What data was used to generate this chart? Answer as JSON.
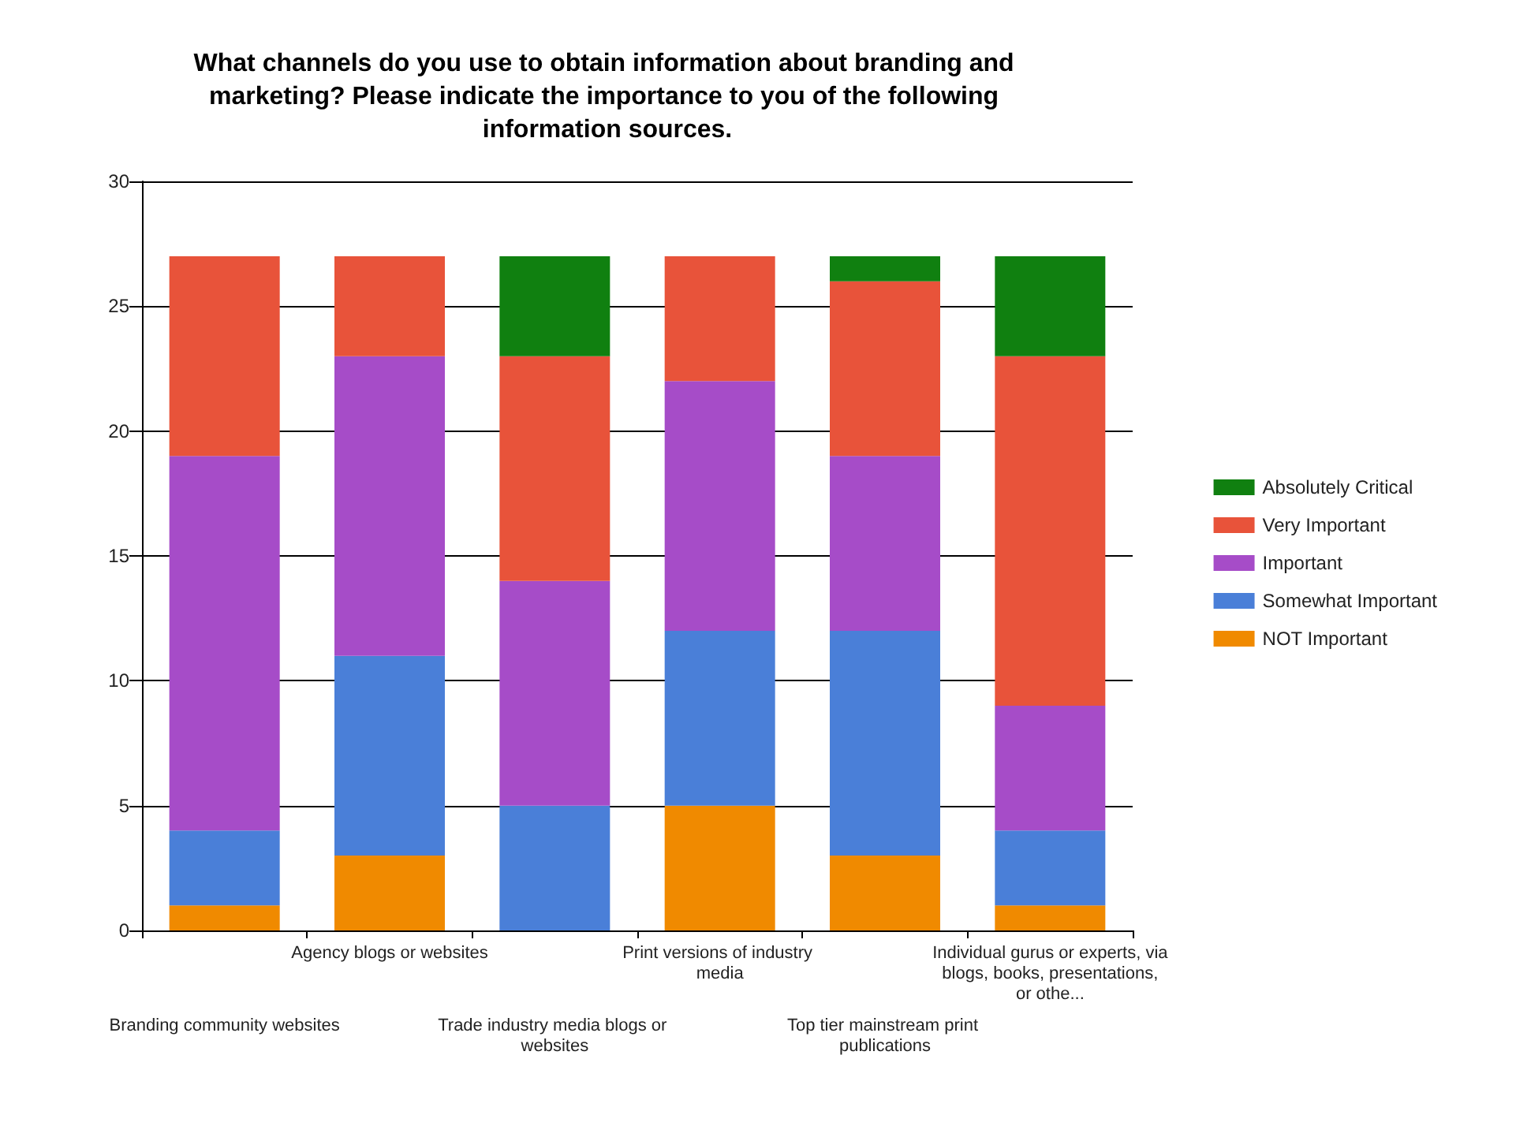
{
  "chart_data": {
    "type": "bar",
    "title": "What channels do you use to obtain information about branding and marketing? Please indicate the importance to you of the following information sources.",
    "categories": [
      "Branding community websites",
      "Agency blogs or websites",
      "Trade industry media blogs or websites",
      "Print versions of industry media",
      "Top tier mainstream print publications",
      "Individual gurus or experts, via blogs, books, presentations, or othe..."
    ],
    "stacked": true,
    "series": [
      {
        "name": "NOT Important",
        "color": "#f08a00",
        "values": [
          1,
          3,
          0,
          5,
          3,
          1
        ]
      },
      {
        "name": "Somewhat Important",
        "color": "#4a7fd8",
        "values": [
          3,
          8,
          5,
          7,
          9,
          3
        ]
      },
      {
        "name": "Important",
        "color": "#a64cc8",
        "values": [
          15,
          12,
          9,
          10,
          7,
          5
        ]
      },
      {
        "name": "Very Important",
        "color": "#e8533a",
        "values": [
          8,
          4,
          9,
          5,
          7,
          14
        ]
      },
      {
        "name": "Absolutely Critical",
        "color": "#108010",
        "values": [
          0,
          0,
          4,
          0,
          1,
          4
        ]
      }
    ],
    "ylim": [
      0,
      30
    ],
    "yticks": [
      0,
      5,
      10,
      15,
      20,
      25,
      30
    ],
    "grid": "y",
    "legend": "right"
  }
}
